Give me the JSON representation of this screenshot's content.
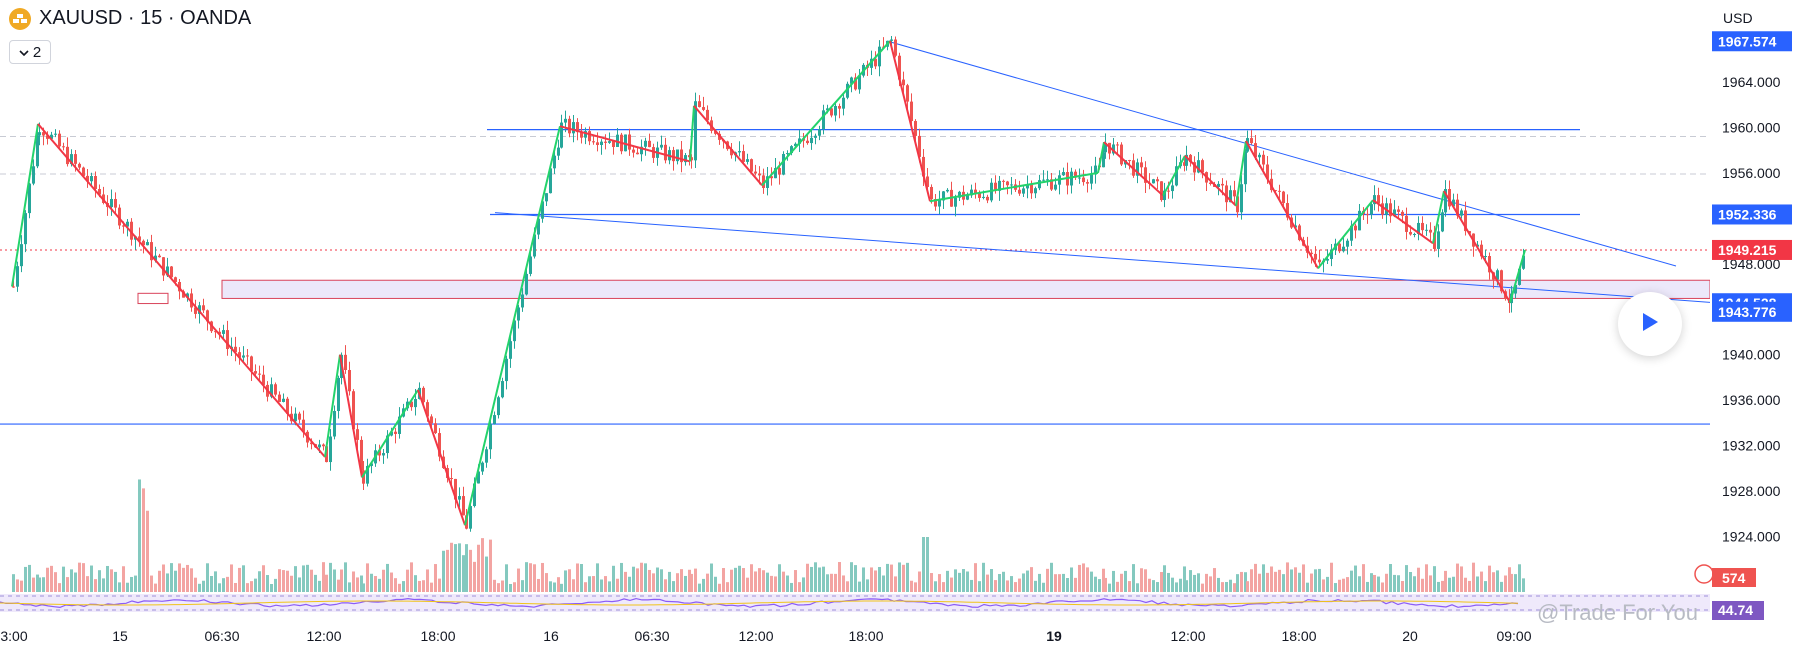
{
  "header": {
    "symbol_title": "XAUUSD · 15 · OANDA",
    "indicator_count": "2"
  },
  "price_axis": {
    "currency": "USD",
    "ticks": [
      "1964.000",
      "1960.000",
      "1956.000",
      "1948.000",
      "1940.000",
      "1936.000",
      "1932.000",
      "1928.000",
      "1924.000"
    ],
    "labels": [
      {
        "text": "1967.574",
        "color": "#2962ff"
      },
      {
        "text": "1952.336",
        "color": "#2962ff"
      },
      {
        "text": "1949.215",
        "color": "#f23645"
      },
      {
        "text": "1944.528",
        "color": "#2962ff"
      },
      {
        "text": "1943.776",
        "color": "#2962ff"
      }
    ],
    "volume_label": "574",
    "rsi_label": "44.74"
  },
  "time_axis": {
    "ticks": [
      "3:00",
      "15",
      "06:30",
      "12:00",
      "18:00",
      "16",
      "06:30",
      "12:00",
      "18:00",
      "19",
      "12:00",
      "18:00",
      "20",
      "09:00"
    ]
  },
  "watermark": "@Trade For You",
  "colors": {
    "up": "#26a69a",
    "down": "#ef5350",
    "zigzag_up": "#23d36b",
    "zigzag_down": "#f23645",
    "trendline": "#2962ff"
  },
  "chart_data": {
    "type": "candlestick",
    "symbol": "XAUUSD",
    "interval": "15",
    "source": "OANDA",
    "ylim": [
      1921.5,
      1970.5
    ],
    "last_price": 1949.215,
    "horizontal_levels": [
      1959.8,
      1952.336,
      1946.5,
      1945.0,
      1933.9
    ],
    "zigzag_pivots": [
      1946,
      1960.3,
      1931,
      1940,
      1929.2,
      1936.9,
      1925.0,
      1960.1,
      1957.0,
      1961.9,
      1954.9,
      1967.6,
      1953.5,
      1956.0,
      1958.7,
      1954.0,
      1957.5,
      1953.1,
      1958.8,
      1947.6,
      1953.6,
      1949.8,
      1954.4,
      1944.6,
      1949.2
    ],
    "volume_last": 574,
    "rsi_last": 44.74
  }
}
